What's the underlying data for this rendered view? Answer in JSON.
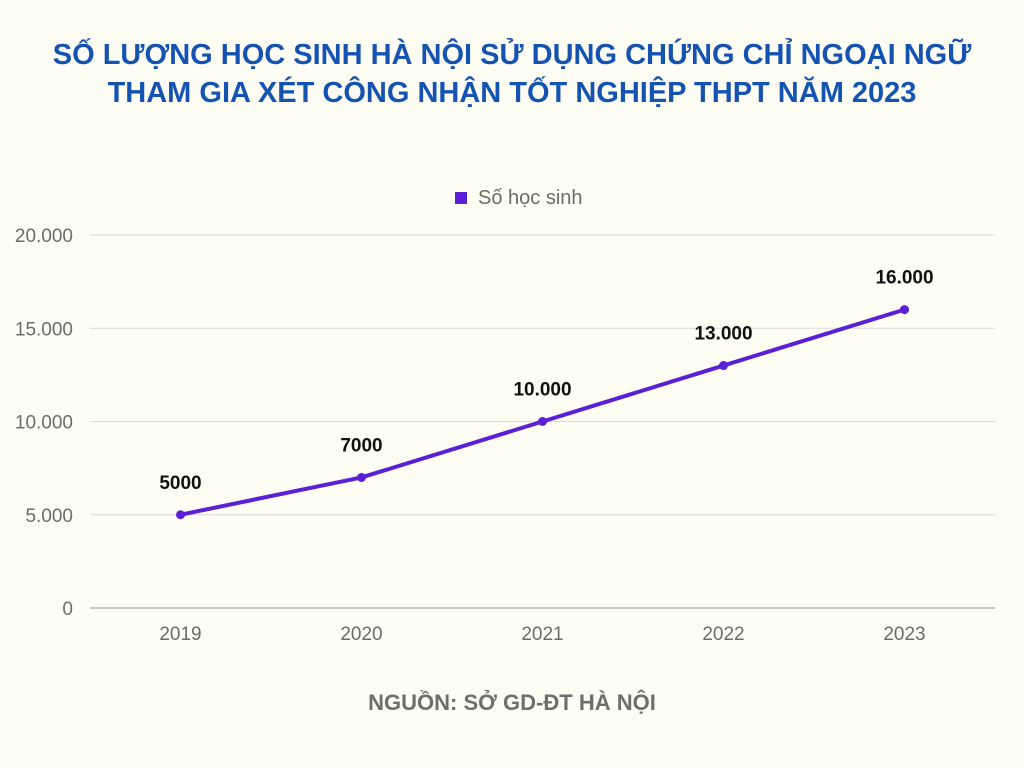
{
  "title_lines": [
    "SỐ LƯỢNG HỌC SINH HÀ NỘI SỬ DỤNG CHỨNG CHỈ NGOẠI NGỮ",
    "THAM GIA XÉT CÔNG NHẬN TỐT NGHIỆP THPT NĂM 2023"
  ],
  "source": "NGUỒN: SỞ GD-ĐT HÀ NỘI",
  "chart_data": {
    "type": "line",
    "title": "SỐ LƯỢNG HỌC SINH HÀ NỘI SỬ DỤNG CHỨNG CHỈ NGOẠI NGỮ THAM GIA XÉT CÔNG NHẬN TỐT NGHIỆP THPT NĂM 2023",
    "categories": [
      "2019",
      "2020",
      "2021",
      "2022",
      "2023"
    ],
    "series": [
      {
        "name": "Số học sinh",
        "color": "#5b1fd6",
        "values": [
          5000,
          7000,
          10000,
          13000,
          16000
        ],
        "labels": [
          "5000",
          "7000",
          "10.000",
          "13.000",
          "16.000"
        ]
      }
    ],
    "ylim": [
      0,
      20000
    ],
    "yticks": [
      0,
      5000,
      10000,
      15000,
      20000
    ],
    "ytick_labels": [
      "0",
      "5.000",
      "10.000",
      "15.000",
      "20.000"
    ],
    "grid": true,
    "legend": "top-center"
  }
}
